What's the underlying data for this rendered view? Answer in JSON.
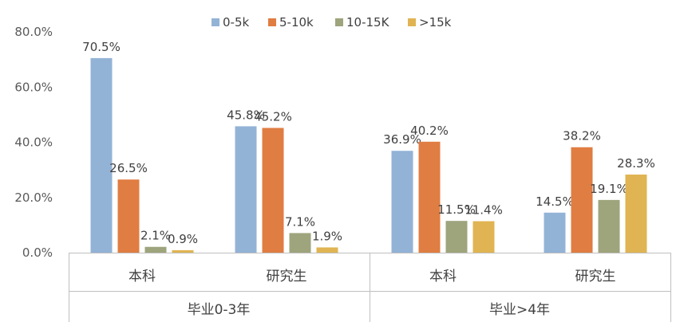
{
  "chart_data": {
    "type": "bar",
    "title": "",
    "groups": [
      "毕业0-3年",
      "毕业>4年"
    ],
    "categories": [
      "本科",
      "研究生",
      "本科",
      "研究生"
    ],
    "category_group": [
      0,
      0,
      1,
      1
    ],
    "series": [
      {
        "name": "0-5k",
        "color": "#93b3d6",
        "values": [
          70.5,
          45.8,
          36.9,
          14.5
        ],
        "labels": [
          "70.5%",
          "45.8%",
          "36.9%",
          "14.5%"
        ]
      },
      {
        "name": "5-10k",
        "color": "#e07d42",
        "values": [
          26.5,
          45.2,
          40.2,
          38.2
        ],
        "labels": [
          "26.5%",
          "45.2%",
          "40.2%",
          "38.2%"
        ]
      },
      {
        "name": "10-15K",
        "color": "#9ea47c",
        "values": [
          2.1,
          7.1,
          11.5,
          19.1
        ],
        "labels": [
          "2.1%",
          "7.1%",
          "11.5%",
          "19.1%"
        ]
      },
      {
        "name": ">15k",
        "color": "#e0b452",
        "values": [
          0.9,
          1.9,
          11.4,
          28.3
        ],
        "labels": [
          "0.9%",
          "1.9%",
          "11.4%",
          "28.3%"
        ]
      }
    ],
    "y_ticks": [
      "0.0%",
      "20.0%",
      "40.0%",
      "60.0%",
      "80.0%"
    ],
    "ylim": [
      0,
      80
    ],
    "grid": false,
    "legend_position": "top"
  }
}
